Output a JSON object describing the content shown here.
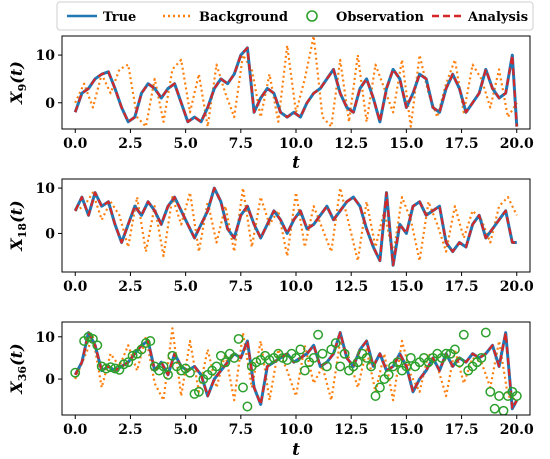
{
  "legend": {
    "placement": "top",
    "entries": [
      {
        "key": "true",
        "label": "True",
        "color": "#1f77b4",
        "style": "solid"
      },
      {
        "key": "background",
        "label": "Background",
        "color": "#ff7f0e",
        "style": "dotted"
      },
      {
        "key": "observation",
        "label": "Observation",
        "color": "#2ca02c",
        "style": "circle"
      },
      {
        "key": "analysis",
        "label": "Analysis",
        "color": "#d62728",
        "style": "dashed"
      }
    ]
  },
  "chart_data": [
    {
      "type": "line",
      "ylabel_main": "X",
      "ylabel_sub": "9",
      "ylabel_tail": "(t)",
      "xlabel": "t",
      "xlim": [
        -0.6,
        20.6
      ],
      "ylim": [
        -5.5,
        14
      ],
      "xticks": [
        0.0,
        2.5,
        5.0,
        7.5,
        10.0,
        12.5,
        15.0,
        17.5,
        20.0
      ],
      "xtick_labels": [
        "0.0",
        "2.5",
        "5.0",
        "7.5",
        "10.0",
        "12.5",
        "15.0",
        "17.5",
        "20.0"
      ],
      "yticks": [
        0,
        10
      ],
      "ytick_labels": [
        "0",
        "10"
      ],
      "series": {
        "true": {
          "x": [
            0,
            0.3,
            0.6,
            0.9,
            1.2,
            1.5,
            1.8,
            2.1,
            2.4,
            2.7,
            3.0,
            3.3,
            3.6,
            3.9,
            4.2,
            4.5,
            4.8,
            5.1,
            5.4,
            5.7,
            6.0,
            6.3,
            6.6,
            6.9,
            7.2,
            7.5,
            7.8,
            8.1,
            8.4,
            8.7,
            9.0,
            9.3,
            9.6,
            9.9,
            10.2,
            10.5,
            10.8,
            11.1,
            11.4,
            11.7,
            12.0,
            12.3,
            12.6,
            12.9,
            13.2,
            13.5,
            13.8,
            14.1,
            14.4,
            14.7,
            15.0,
            15.3,
            15.6,
            15.9,
            16.2,
            16.5,
            16.8,
            17.1,
            17.4,
            17.7,
            18.0,
            18.3,
            18.6,
            18.9,
            19.2,
            19.5,
            19.8,
            20.0
          ],
          "y": [
            -2,
            2,
            3,
            5,
            6,
            6.5,
            3,
            -1,
            -4,
            -3,
            2,
            4,
            3,
            1,
            3,
            4,
            0,
            -4,
            -3,
            -4,
            -1,
            3,
            5,
            4,
            6,
            10,
            11.5,
            -2,
            1,
            3,
            2,
            -2,
            -3,
            -2,
            -3,
            0,
            2,
            3,
            5,
            7,
            2,
            -1,
            -2,
            3,
            5,
            1,
            -4,
            3,
            7,
            5,
            -1,
            2,
            6,
            5,
            -1,
            -2,
            3,
            6,
            3,
            -2,
            0,
            2,
            7,
            3,
            1,
            2,
            10,
            -5
          ]
        },
        "background": {
          "x": [
            0,
            0.4,
            0.8,
            1.2,
            1.6,
            2.0,
            2.4,
            2.8,
            3.2,
            3.6,
            4.0,
            4.4,
            4.8,
            5.2,
            5.6,
            6.0,
            6.4,
            6.8,
            7.2,
            7.6,
            8.0,
            8.4,
            8.8,
            9.2,
            9.6,
            10.0,
            10.4,
            10.8,
            11.2,
            11.6,
            12.0,
            12.4,
            12.8,
            13.2,
            13.6,
            14.0,
            14.4,
            14.8,
            15.2,
            15.6,
            16.0,
            16.4,
            16.8,
            17.2,
            17.6,
            18.0,
            18.4,
            18.8,
            19.2,
            19.6,
            20.0
          ],
          "y": [
            0,
            4,
            -1,
            6,
            2,
            7,
            8,
            -3,
            -5,
            5,
            -4,
            7,
            9,
            -2,
            6,
            -5,
            8,
            2,
            -3,
            10,
            7,
            -3,
            6,
            -4,
            12,
            -2,
            5,
            14,
            -3,
            -5,
            9,
            -4,
            10,
            -4,
            8,
            3,
            -2,
            9,
            -5,
            10,
            2,
            -3,
            4,
            9,
            -2,
            8,
            5,
            -1,
            7,
            -3,
            0
          ]
        },
        "analysis": "true_overlay"
      }
    },
    {
      "type": "line",
      "ylabel_main": "X",
      "ylabel_sub": "18",
      "ylabel_tail": "(t)",
      "xlabel": "",
      "xlim": [
        -0.6,
        20.6
      ],
      "ylim": [
        -8.5,
        12
      ],
      "xticks": [
        0.0,
        2.5,
        5.0,
        7.5,
        10.0,
        12.5,
        15.0,
        17.5,
        20.0
      ],
      "xtick_labels": [
        "0.0",
        "2.5",
        "5.0",
        "7.5",
        "10.0",
        "12.5",
        "15.0",
        "17.5",
        "20.0"
      ],
      "yticks": [
        0,
        10
      ],
      "ytick_labels": [
        "0",
        "10"
      ],
      "series": {
        "true": {
          "x": [
            0,
            0.3,
            0.6,
            0.9,
            1.2,
            1.5,
            1.8,
            2.1,
            2.4,
            2.7,
            3.0,
            3.3,
            3.6,
            3.9,
            4.2,
            4.5,
            4.8,
            5.1,
            5.4,
            5.7,
            6.0,
            6.3,
            6.6,
            6.9,
            7.2,
            7.5,
            7.8,
            8.1,
            8.4,
            8.7,
            9.0,
            9.3,
            9.6,
            9.9,
            10.2,
            10.5,
            10.8,
            11.1,
            11.4,
            11.7,
            12.0,
            12.3,
            12.6,
            12.9,
            13.2,
            13.5,
            13.8,
            14.1,
            14.4,
            14.7,
            15.0,
            15.3,
            15.6,
            15.9,
            16.2,
            16.5,
            16.8,
            17.1,
            17.4,
            17.7,
            18.0,
            18.3,
            18.6,
            18.9,
            19.2,
            19.5,
            19.8,
            20.0
          ],
          "y": [
            5,
            8,
            4,
            9,
            6,
            7,
            2,
            -2,
            2,
            6,
            4,
            7,
            5,
            2,
            6,
            8,
            5,
            2,
            -1,
            2,
            5,
            10,
            7,
            1,
            -1,
            4,
            6,
            2,
            -1,
            2,
            5,
            3,
            0,
            3,
            5,
            1,
            2,
            4,
            6,
            3,
            5,
            7,
            8,
            6,
            1,
            -3,
            -6,
            9,
            -7,
            2,
            0,
            6,
            7,
            4,
            5,
            6,
            -2,
            -4,
            -2,
            -3,
            2,
            4,
            -1,
            1,
            3,
            5,
            -2,
            -2
          ]
        },
        "background": {
          "x": [
            0,
            0.4,
            0.8,
            1.2,
            1.6,
            2.0,
            2.4,
            2.8,
            3.2,
            3.6,
            4.0,
            4.4,
            4.8,
            5.2,
            5.6,
            6.0,
            6.4,
            6.8,
            7.2,
            7.6,
            8.0,
            8.4,
            8.8,
            9.2,
            9.6,
            10.0,
            10.4,
            10.8,
            11.2,
            11.6,
            12.0,
            12.4,
            12.8,
            13.2,
            13.6,
            14.0,
            14.4,
            14.8,
            15.2,
            15.6,
            16.0,
            16.4,
            16.8,
            17.2,
            17.6,
            18.0,
            18.4,
            18.8,
            19.2,
            19.6,
            20.0
          ],
          "y": [
            5,
            6,
            9,
            3,
            7,
            4,
            -3,
            8,
            -4,
            6,
            -5,
            8,
            2,
            9,
            -4,
            7,
            -2,
            6,
            -4,
            10,
            -3,
            8,
            2,
            5,
            -5,
            9,
            -3,
            6,
            1,
            -4,
            10,
            2,
            -6,
            7,
            -3,
            5,
            -5,
            8,
            3,
            -6,
            7,
            2,
            -4,
            6,
            -1,
            5,
            3,
            -2,
            6,
            8,
            4
          ]
        },
        "analysis": "true_overlay"
      }
    },
    {
      "type": "line",
      "ylabel_main": "X",
      "ylabel_sub": "36",
      "ylabel_tail": "(t)",
      "xlabel": "t",
      "xlim": [
        -0.6,
        20.6
      ],
      "ylim": [
        -8.5,
        13.5
      ],
      "xticks": [
        0.0,
        2.5,
        5.0,
        7.5,
        10.0,
        12.5,
        15.0,
        17.5,
        20.0
      ],
      "xtick_labels": [
        "0.0",
        "2.5",
        "5.0",
        "7.5",
        "10.0",
        "12.5",
        "15.0",
        "17.5",
        "20.0"
      ],
      "yticks": [
        0,
        10
      ],
      "ytick_labels": [
        "0",
        "10"
      ],
      "series": {
        "true": {
          "x": [
            0,
            0.3,
            0.6,
            0.9,
            1.2,
            1.5,
            1.8,
            2.1,
            2.4,
            2.7,
            3.0,
            3.3,
            3.6,
            3.9,
            4.2,
            4.5,
            4.8,
            5.1,
            5.4,
            5.7,
            6.0,
            6.3,
            6.6,
            6.9,
            7.2,
            7.5,
            7.8,
            8.1,
            8.4,
            8.7,
            9.0,
            9.3,
            9.6,
            9.9,
            10.2,
            10.5,
            10.8,
            11.1,
            11.4,
            11.7,
            12.0,
            12.3,
            12.6,
            12.9,
            13.2,
            13.5,
            13.8,
            14.1,
            14.4,
            14.7,
            15.0,
            15.3,
            15.6,
            15.9,
            16.2,
            16.5,
            16.8,
            17.1,
            17.4,
            17.7,
            18.0,
            18.3,
            18.6,
            18.9,
            19.2,
            19.5,
            19.8,
            20.0
          ],
          "y": [
            1,
            4,
            11,
            8,
            2,
            3,
            2,
            3,
            4,
            6,
            8,
            9,
            2,
            4,
            1,
            6,
            3,
            2,
            3,
            1,
            -4,
            0,
            2,
            4,
            6,
            5,
            9,
            -2,
            -6,
            3,
            4,
            5,
            6,
            4,
            5,
            6,
            8,
            3,
            4,
            6,
            11,
            5,
            3,
            7,
            9,
            3,
            6,
            2,
            3,
            6,
            3,
            -3,
            0,
            2,
            5,
            2,
            6,
            3,
            5,
            4,
            6,
            5,
            6,
            8,
            3,
            11,
            -7,
            -5
          ]
        },
        "background": {
          "x": [
            0,
            0.4,
            0.8,
            1.2,
            1.6,
            2.0,
            2.4,
            2.8,
            3.2,
            3.6,
            4.0,
            4.4,
            4.8,
            5.2,
            5.6,
            6.0,
            6.4,
            6.8,
            7.2,
            7.6,
            8.0,
            8.4,
            8.8,
            9.2,
            9.6,
            10.0,
            10.4,
            10.8,
            11.2,
            11.6,
            12.0,
            12.4,
            12.8,
            13.2,
            13.6,
            14.0,
            14.4,
            14.8,
            15.2,
            15.6,
            16.0,
            16.4,
            16.8,
            17.2,
            17.6,
            18.0,
            18.4,
            18.8,
            19.2,
            19.6,
            20.0
          ],
          "y": [
            0,
            5,
            10,
            -2,
            6,
            3,
            8,
            2,
            10,
            -1,
            -5,
            12,
            -4,
            9,
            -3,
            7,
            -2,
            6,
            -5,
            11,
            -2,
            9,
            -5,
            7,
            2,
            -4,
            8,
            -1,
            3,
            -5,
            9,
            5,
            -2,
            7,
            -3,
            6,
            -5,
            9,
            1,
            -3,
            6,
            3,
            -4,
            7,
            -1,
            5,
            4,
            -2,
            9,
            -4,
            -5
          ]
        },
        "observation": {
          "x": [
            0.0,
            0.4,
            0.6,
            0.8,
            1.0,
            1.2,
            1.4,
            1.6,
            1.8,
            2.0,
            2.2,
            2.4,
            2.6,
            2.8,
            3.0,
            3.2,
            3.4,
            3.6,
            3.8,
            4.0,
            4.2,
            4.4,
            4.6,
            4.8,
            5.0,
            5.2,
            5.4,
            5.6,
            5.8,
            6.0,
            6.2,
            6.4,
            6.6,
            6.8,
            7.0,
            7.2,
            7.4,
            7.6,
            7.8,
            8.0,
            8.2,
            8.4,
            8.6,
            8.8,
            9.0,
            9.2,
            9.4,
            9.6,
            9.8,
            10.0,
            10.2,
            10.4,
            10.6,
            10.8,
            11.0,
            11.2,
            11.4,
            11.6,
            11.8,
            12.0,
            12.2,
            12.4,
            12.6,
            12.8,
            13.0,
            13.2,
            13.4,
            13.6,
            13.8,
            14.0,
            14.2,
            14.4,
            14.6,
            14.8,
            15.0,
            15.2,
            15.4,
            15.6,
            15.8,
            16.0,
            16.2,
            16.4,
            16.6,
            16.8,
            17.0,
            17.2,
            17.4,
            17.6,
            17.8,
            18.0,
            18.2,
            18.4,
            18.6,
            18.8,
            19.0,
            19.2,
            19.4,
            19.6,
            19.8,
            20.0
          ],
          "y": [
            1.5,
            9,
            10,
            9.5,
            8,
            3,
            2.5,
            2.8,
            2.5,
            2.2,
            3.5,
            4,
            5.5,
            6,
            7,
            8.5,
            9,
            3,
            2,
            3,
            1,
            5.5,
            3,
            2,
            2.5,
            1.5,
            -3.5,
            -3,
            0,
            1,
            2,
            3,
            5.5,
            4,
            6,
            5,
            9.5,
            -2,
            -6.5,
            3,
            4,
            4.5,
            5.5,
            4.5,
            5,
            6,
            5,
            4.5,
            6,
            5,
            7,
            2,
            4,
            5,
            10.5,
            6,
            3,
            7,
            8.5,
            3,
            6,
            2,
            3,
            4,
            6,
            5,
            3,
            -4,
            -2,
            0,
            1,
            3,
            4,
            2,
            3,
            5,
            3,
            4,
            5,
            4,
            5,
            6,
            5,
            6,
            6,
            7,
            4,
            10.5,
            2,
            3,
            4,
            5,
            11,
            -3,
            -7,
            -4,
            -7.5,
            -4,
            -3,
            -4
          ]
        },
        "analysis": "true_overlay"
      }
    }
  ]
}
